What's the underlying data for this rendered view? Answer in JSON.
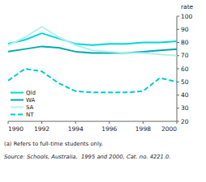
{
  "chart_data": {
    "type": "line",
    "x": [
      1990,
      1991,
      1992,
      1993,
      1994,
      1995,
      1996,
      1997,
      1998,
      1999,
      2000
    ],
    "series": [
      {
        "name": "Qld",
        "color": "#00d8d8",
        "line_style": "solid",
        "values": [
          79,
          82,
          87,
          83,
          79,
          78,
          79,
          79,
          80,
          80,
          81
        ]
      },
      {
        "name": "WA",
        "color": "#00aaaa",
        "line_style": "solid",
        "values": [
          73,
          75,
          77,
          76,
          73,
          72,
          72,
          72,
          73,
          74,
          75
        ]
      },
      {
        "name": "SA",
        "color": "#b0f0f0",
        "line_style": "solid",
        "values": [
          78,
          84,
          92,
          84,
          78,
          74,
          73,
          72,
          72,
          71,
          70
        ]
      },
      {
        "name": "NT",
        "color": "#00cccc",
        "line_style": "dashed",
        "values": [
          51,
          60,
          58,
          49,
          43,
          42,
          42,
          42,
          43,
          53,
          50
        ]
      }
    ],
    "y_label": "rate",
    "ylim": [
      20,
      100
    ],
    "yticks": [
      20,
      30,
      40,
      50,
      60,
      70,
      80,
      90,
      100
    ],
    "xlim": [
      1990,
      2000
    ],
    "xticks": [
      1990,
      1992,
      1994,
      1996,
      1998,
      2000
    ],
    "legend": "lower left",
    "grid": false,
    "annotations": [
      "(a) Refers to full-time students only.",
      "Source: Schools, Australia,  1995 and 2000, Cat. no. 4221.0."
    ]
  }
}
